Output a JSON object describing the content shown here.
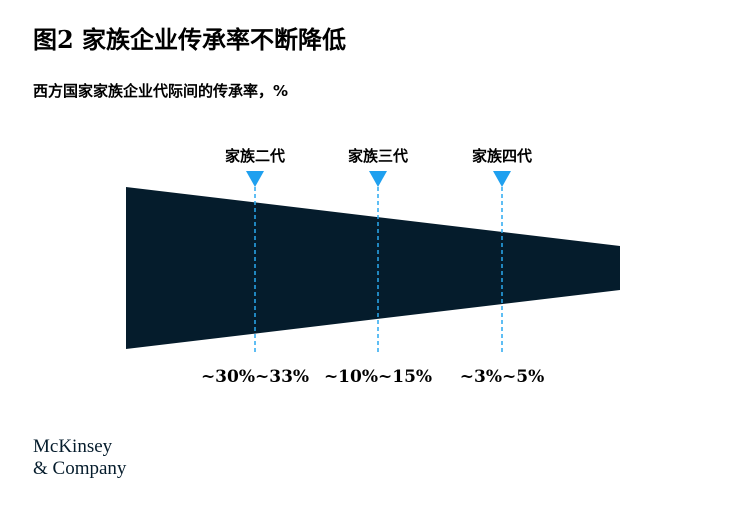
{
  "header": {
    "title": "图2 家族企业传承率不断降低",
    "subtitle": "西方国家家族企业代际间的传承率，%"
  },
  "stages": [
    {
      "label": "家族二代",
      "rate": "~30%~33%"
    },
    {
      "label": "家族三代",
      "rate": "~10%~15%"
    },
    {
      "label": "家族四代",
      "rate": "~3%~5%"
    }
  ],
  "footer": {
    "logo_line1": "McKinsey",
    "logo_line2": "& Company"
  }
}
